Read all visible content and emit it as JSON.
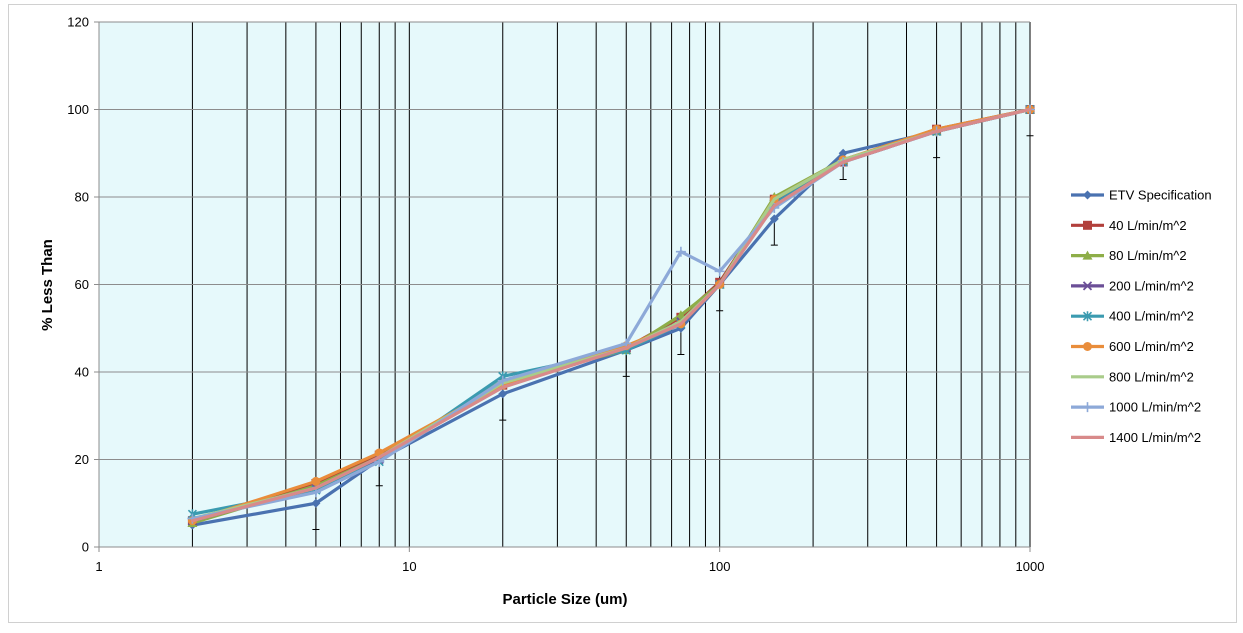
{
  "chart_data": {
    "type": "line",
    "title": "",
    "xlabel": "Particle Size (um)",
    "ylabel": "% Less Than",
    "x_scale": "log",
    "xlim": [
      1,
      1000
    ],
    "ylim": [
      0,
      120
    ],
    "x_ticks": [
      "1",
      "10",
      "100",
      "1000"
    ],
    "y_ticks": [
      "0",
      "20",
      "40",
      "60",
      "80",
      "100",
      "120"
    ],
    "grid": true,
    "legend": "right",
    "series": [
      {
        "name": "ETV Specification",
        "color": "#4a72b0",
        "marker": "diamond",
        "x": [
          2,
          5,
          8,
          20,
          50,
          75,
          100,
          150,
          250,
          500,
          1000
        ],
        "y": [
          5,
          10,
          20,
          35,
          45,
          50,
          60,
          75,
          90,
          95,
          100
        ],
        "error_low": [
          null,
          6,
          6,
          6,
          6,
          6,
          6,
          6,
          6,
          6,
          6
        ]
      },
      {
        "name": "40 L/min/m^2",
        "color": "#b2403c",
        "marker": "square",
        "x": [
          2,
          5,
          8,
          20,
          50,
          75,
          100,
          150,
          250,
          500,
          1000
        ],
        "y": [
          6,
          14.5,
          21,
          37,
          45.5,
          52.5,
          60.5,
          79.5,
          88,
          95.5,
          100
        ]
      },
      {
        "name": "80 L/min/m^2",
        "color": "#8eae48",
        "marker": "triangle",
        "x": [
          2,
          5,
          8,
          20,
          50,
          75,
          100,
          150,
          250,
          500,
          1000
        ],
        "y": [
          5.5,
          14,
          20.5,
          38,
          45,
          53,
          60,
          80,
          88.5,
          95,
          100
        ]
      },
      {
        "name": "200 L/min/m^2",
        "color": "#6b4f97",
        "marker": "x",
        "x": [
          2,
          5,
          8,
          20,
          50,
          75,
          100,
          150,
          250,
          500,
          1000
        ],
        "y": [
          6,
          13.5,
          20,
          37.5,
          45.5,
          51.5,
          60,
          79,
          88,
          95,
          100
        ]
      },
      {
        "name": "400 L/min/m^2",
        "color": "#3b9bb0",
        "marker": "star",
        "x": [
          2,
          5,
          8,
          20,
          50,
          75,
          100,
          150,
          250,
          500,
          1000
        ],
        "y": [
          7.5,
          13,
          19.5,
          39,
          45,
          51,
          60,
          78.5,
          88,
          95,
          100
        ]
      },
      {
        "name": "600 L/min/m^2",
        "color": "#e98d3b",
        "marker": "circle",
        "x": [
          2,
          5,
          8,
          20,
          50,
          75,
          100,
          150,
          250,
          500,
          1000
        ],
        "y": [
          6,
          15,
          21.5,
          37,
          46,
          51,
          60,
          79.5,
          88.5,
          95.5,
          100
        ]
      },
      {
        "name": "800 L/min/m^2",
        "color": "#a9cc8a",
        "marker": "none",
        "x": [
          2,
          5,
          8,
          20,
          50,
          75,
          100,
          150,
          250,
          500,
          1000
        ],
        "y": [
          6.5,
          13.5,
          20.5,
          37.5,
          45.5,
          51.5,
          60,
          79.5,
          88.5,
          95,
          100
        ]
      },
      {
        "name": "1000 L/min/m^2",
        "color": "#8da9d8",
        "marker": "plus",
        "x": [
          2,
          5,
          8,
          20,
          50,
          75,
          100,
          150,
          250,
          500,
          1000
        ],
        "y": [
          6.5,
          12.5,
          19.5,
          38,
          46.5,
          67.5,
          63,
          77.5,
          88,
          95,
          100
        ]
      },
      {
        "name": "1400 L/min/m^2",
        "color": "#d88a8a",
        "marker": "none",
        "x": [
          2,
          5,
          8,
          20,
          50,
          75,
          100,
          150,
          250,
          500,
          1000
        ],
        "y": [
          6,
          13.5,
          20.5,
          36.5,
          45.5,
          51,
          60,
          78,
          88,
          95,
          100
        ]
      }
    ]
  }
}
